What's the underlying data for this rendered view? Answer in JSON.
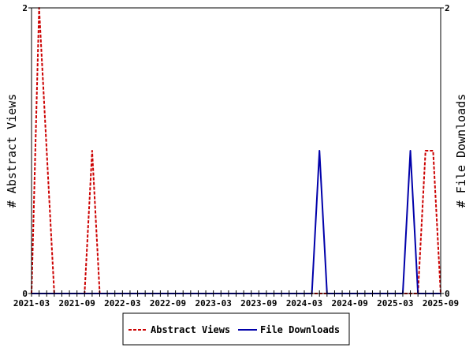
{
  "chart_data": {
    "type": "line",
    "ylabel_left": "# Abstract Views",
    "ylabel_right": "# File Downloads",
    "ylim_left": [
      0,
      2
    ],
    "ylim_right": [
      0,
      2
    ],
    "y_ticks_left": [
      "0",
      "2"
    ],
    "y_ticks_right": [
      "0",
      "2"
    ],
    "x_tick_labels": [
      "2021-03",
      "2021-09",
      "2022-03",
      "2022-09",
      "2023-03",
      "2023-09",
      "2024-03",
      "2024-09",
      "2025-03",
      "2025-09"
    ],
    "x": [
      "2021-03",
      "2021-04",
      "2021-05",
      "2021-06",
      "2021-07",
      "2021-08",
      "2021-09",
      "2021-10",
      "2021-11",
      "2021-12",
      "2022-01",
      "2022-02",
      "2022-03",
      "2022-04",
      "2022-05",
      "2022-06",
      "2022-07",
      "2022-08",
      "2022-09",
      "2022-10",
      "2022-11",
      "2022-12",
      "2023-01",
      "2023-02",
      "2023-03",
      "2023-04",
      "2023-05",
      "2023-06",
      "2023-07",
      "2023-08",
      "2023-09",
      "2023-10",
      "2023-11",
      "2023-12",
      "2024-01",
      "2024-02",
      "2024-03",
      "2024-04",
      "2024-05",
      "2024-06",
      "2024-07",
      "2024-08",
      "2024-09",
      "2024-10",
      "2024-11",
      "2024-12",
      "2025-01",
      "2025-02",
      "2025-03",
      "2025-04",
      "2025-05",
      "2025-06",
      "2025-07",
      "2025-08",
      "2025-09"
    ],
    "series": [
      {
        "name": "Abstract Views",
        "color": "#cc0000",
        "style": "dashed",
        "axis": "left",
        "values": [
          0,
          2,
          1,
          0,
          0,
          0,
          0,
          0,
          1,
          0,
          0,
          0,
          0,
          0,
          0,
          0,
          0,
          0,
          0,
          0,
          0,
          0,
          0,
          0,
          0,
          0,
          0,
          0,
          0,
          0,
          0,
          0,
          0,
          0,
          0,
          0,
          0,
          0,
          0,
          0,
          0,
          0,
          0,
          0,
          0,
          0,
          0,
          0,
          0,
          0,
          0,
          0,
          1,
          1,
          0
        ]
      },
      {
        "name": "File Downloads",
        "color": "#0000aa",
        "style": "solid",
        "axis": "right",
        "values": [
          0,
          0,
          0,
          0,
          0,
          0,
          0,
          0,
          0,
          0,
          0,
          0,
          0,
          0,
          0,
          0,
          0,
          0,
          0,
          0,
          0,
          0,
          0,
          0,
          0,
          0,
          0,
          0,
          0,
          0,
          0,
          0,
          0,
          0,
          0,
          0,
          0,
          0,
          1,
          0,
          0,
          0,
          0,
          0,
          0,
          0,
          0,
          0,
          0,
          0,
          1,
          0,
          0,
          0,
          0
        ]
      }
    ],
    "legend_position": "bottom-center",
    "grid": false
  }
}
